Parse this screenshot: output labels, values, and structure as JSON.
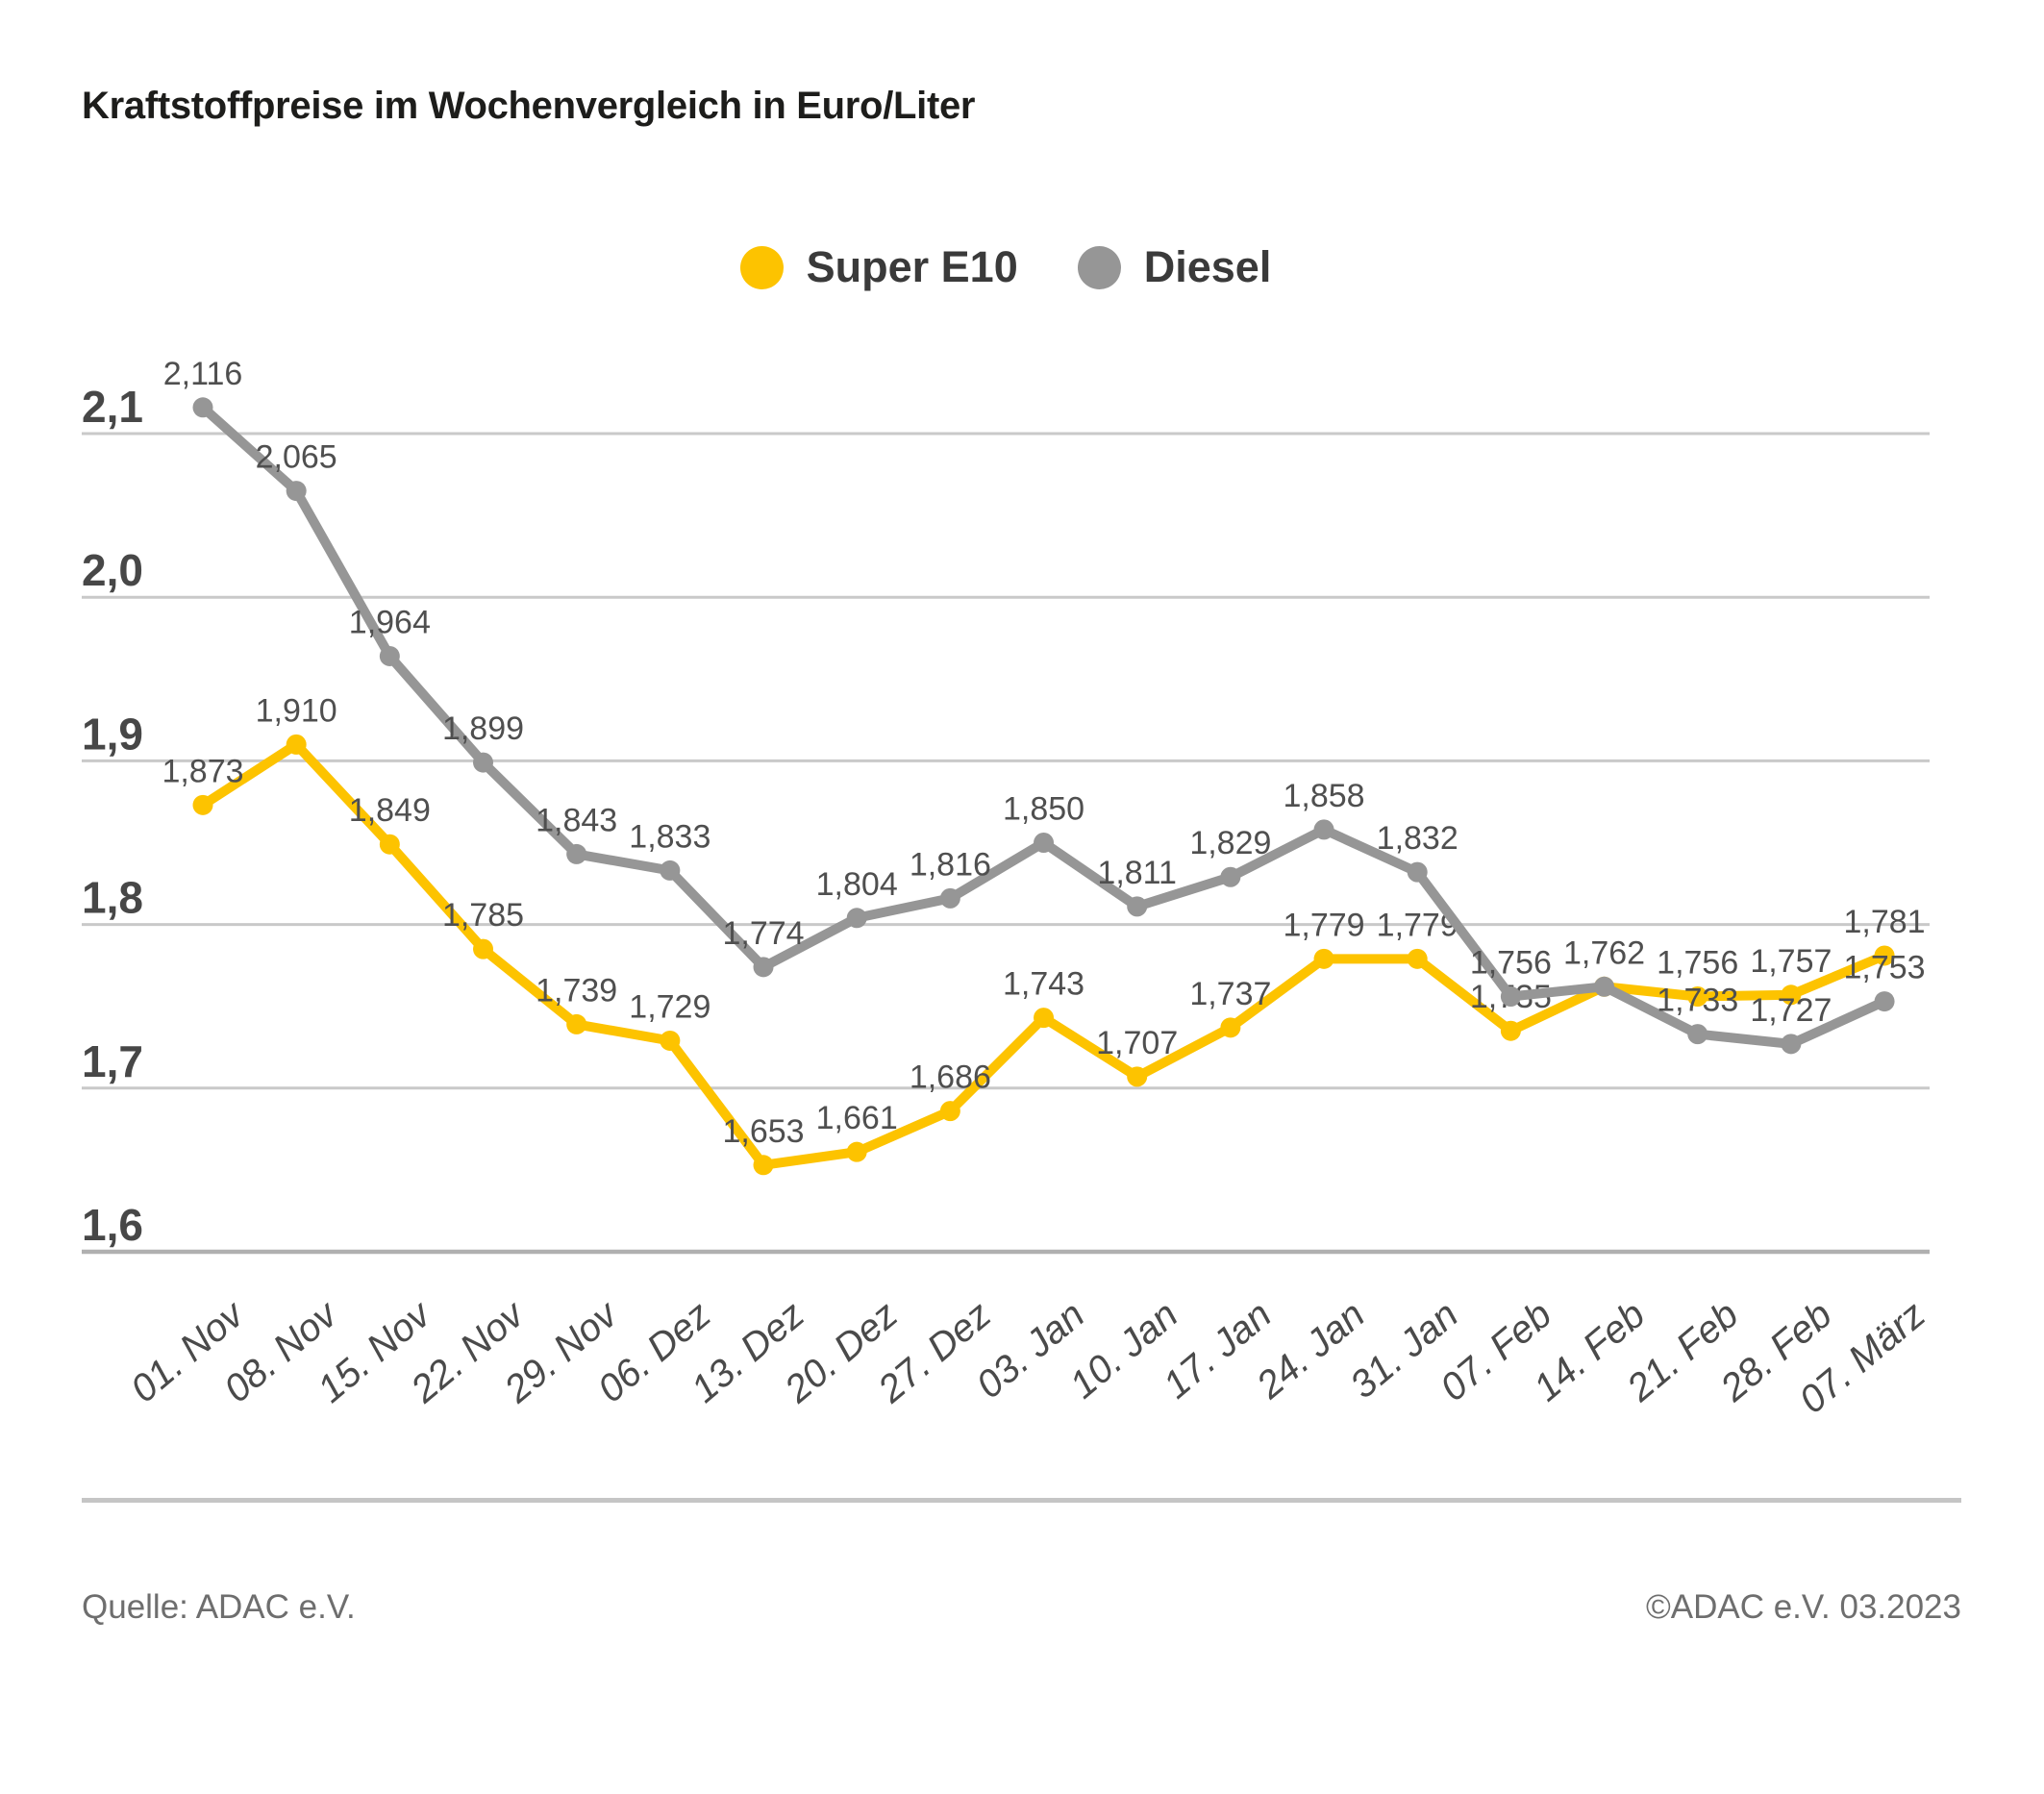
{
  "title": "Kraftstoffpreise im Wochenvergleich in Euro/Liter",
  "footer": {
    "source": "Quelle: ADAC e.V.",
    "copyright": "©ADAC e.V. 03.2023"
  },
  "chart_data": {
    "type": "line",
    "title": "Kraftstoffpreise im Wochenvergleich in Euro/Liter",
    "unit": "Euro/Liter",
    "legend_position": "top",
    "grid": true,
    "categories": [
      "01. Nov",
      "08. Nov",
      "15. Nov",
      "22. Nov",
      "29. Nov",
      "06. Dez",
      "13. Dez",
      "20. Dez",
      "27. Dez",
      "03. Jan",
      "10. Jan",
      "17. Jan",
      "24. Jan",
      "31. Jan",
      "07. Feb",
      "14. Feb",
      "21. Feb",
      "28. Feb",
      "07. März"
    ],
    "series": [
      {
        "name": "Super E10",
        "color": "#FDC300",
        "values": [
          1.873,
          1.91,
          1.849,
          1.785,
          1.739,
          1.729,
          1.653,
          1.661,
          1.686,
          1.743,
          1.707,
          1.737,
          1.779,
          1.779,
          1.735,
          1.762,
          1.756,
          1.757,
          1.781
        ],
        "labels": [
          "1,873",
          "1,910",
          "1,849",
          "1,785",
          "1,739",
          "1,729",
          "1,653",
          "1,661",
          "1,686",
          "1,743",
          "1,707",
          "1,737",
          "1,779",
          "1,779",
          "1,735",
          "1,762",
          "1,756",
          "1,757",
          "1,781"
        ],
        "hidden_label_indices": [
          15
        ]
      },
      {
        "name": "Diesel",
        "color": "#969696",
        "values": [
          2.116,
          2.065,
          1.964,
          1.899,
          1.843,
          1.833,
          1.774,
          1.804,
          1.816,
          1.85,
          1.811,
          1.829,
          1.858,
          1.832,
          1.756,
          1.762,
          1.733,
          1.727,
          1.753
        ],
        "labels": [
          "2,116",
          "2,065",
          "1,964",
          "1,899",
          "1,843",
          "1,833",
          "1,774",
          "1,804",
          "1,816",
          "1,850",
          "1,811",
          "1,829",
          "1,858",
          "1,832",
          "1,756",
          "1,762",
          "1,733",
          "1,727",
          "1,753"
        ],
        "hidden_label_indices": []
      }
    ],
    "y_axis": {
      "min": 1.6,
      "max": 2.1,
      "ticks": [
        "2,1",
        "2,0",
        "1,9",
        "1,8",
        "1,7",
        "1,6"
      ],
      "tick_values": [
        2.1,
        2.0,
        1.9,
        1.8,
        1.7,
        1.6
      ]
    }
  }
}
